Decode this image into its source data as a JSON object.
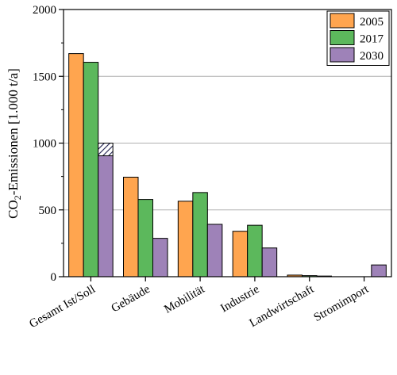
{
  "chart_data": {
    "type": "bar",
    "title": "",
    "ylabel_main": "CO",
    "ylabel_sub": "2",
    "ylabel_rest": "-Emissionen [1.000 t/a]",
    "xlabel": "",
    "ylim": [
      0,
      2000
    ],
    "yticks": [
      "0",
      "500",
      "1000",
      "1500",
      "2000"
    ],
    "grid": "horizontal",
    "legend_position": "top-right",
    "categories": [
      "Gesamt Ist/Soll",
      "Gebäude",
      "Mobilität",
      "Industrie",
      "Landwirtschaft",
      "Stromimport"
    ],
    "series": [
      {
        "name": "2005",
        "color": "#FFA54F",
        "values": [
          1670,
          745,
          565,
          340,
          12,
          0
        ]
      },
      {
        "name": "2017",
        "color": "#5CB85C",
        "values": [
          1605,
          578,
          630,
          385,
          8,
          0
        ]
      },
      {
        "name": "2030",
        "color": "#9E82B8",
        "values": [
          905,
          287,
          392,
          215,
          5,
          88
        ]
      }
    ],
    "stacked_extension": {
      "category": "Gesamt Ist/Soll",
      "series": "2030",
      "from": 905,
      "to": 1000,
      "pattern": "hatched"
    }
  }
}
